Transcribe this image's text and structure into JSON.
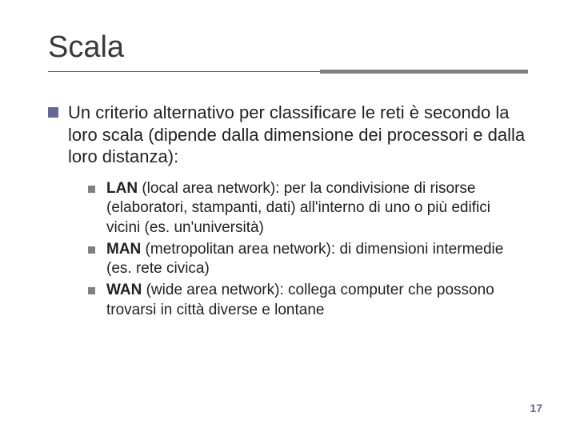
{
  "title": "Scala",
  "main_text": "Un criterio alternativo per classificare le reti è secondo la loro scala (dipende dalla dimensione dei processori e dalla loro distanza):",
  "sub": [
    {
      "bold": "LAN",
      "rest": " (local area network): per la condivisione di risorse (elaboratori, stampanti, dati) all'interno di uno o più edifici vicini (es. un'università)"
    },
    {
      "bold": "MAN",
      "rest": " (metropolitan area network): di dimensioni intermedie (es. rete civica)"
    },
    {
      "bold": "WAN",
      "rest": " (wide area network): collega computer che possono trovarsi in città diverse e lontane"
    }
  ],
  "page_number": "17",
  "colors": {
    "bullet_main": "#666699",
    "bullet_sub": "#808080",
    "line": "#808080",
    "pagenum": "#666699"
  }
}
